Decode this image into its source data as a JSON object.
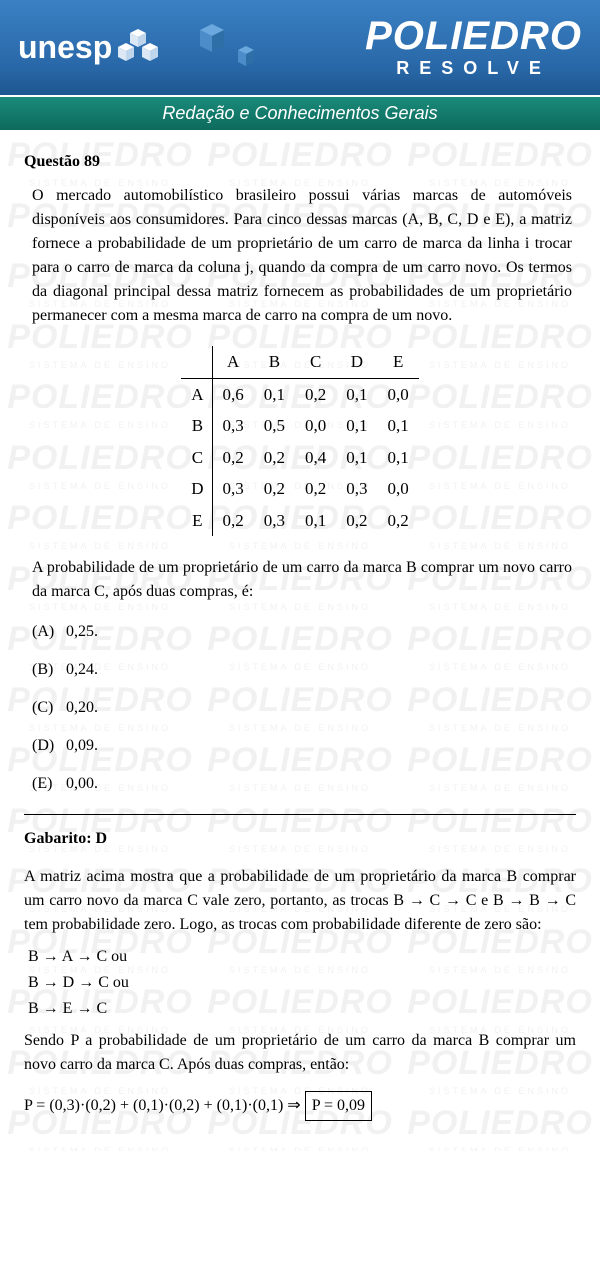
{
  "header": {
    "unesp_text": "unesp",
    "poliedro_main": "POLIEDRO",
    "poliedro_sub": "RESOLVE"
  },
  "subheader": "Redação e Conhecimentos Gerais",
  "question": {
    "title": "Questão 89",
    "body": "O mercado automobilístico brasileiro possui várias marcas de automóveis disponíveis aos consumidores. Para cinco dessas marcas (A, B, C, D e E), a matriz fornece a probabilidade de um proprietário de um carro de marca da linha i trocar para o carro de marca da coluna j, quando da compra de um carro novo. Os termos da diagonal principal dessa matriz fornecem as probabilidades de um proprietário permanecer com a mesma marca de carro na compra de um novo.",
    "matrix": {
      "cols": [
        "A",
        "B",
        "C",
        "D",
        "E"
      ],
      "rows": [
        "A",
        "B",
        "C",
        "D",
        "E"
      ],
      "cells": [
        [
          "0,6",
          "0,1",
          "0,2",
          "0,1",
          "0,0"
        ],
        [
          "0,3",
          "0,5",
          "0,0",
          "0,1",
          "0,1"
        ],
        [
          "0,2",
          "0,2",
          "0,4",
          "0,1",
          "0,1"
        ],
        [
          "0,3",
          "0,2",
          "0,2",
          "0,3",
          "0,0"
        ],
        [
          "0,2",
          "0,3",
          "0,1",
          "0,2",
          "0,2"
        ]
      ]
    },
    "subtext": "A probabilidade de um proprietário de um carro da marca B comprar um novo carro da marca C, após duas compras, é:",
    "options": [
      {
        "label": "(A)",
        "value": "0,25."
      },
      {
        "label": "(B)",
        "value": "0,24."
      },
      {
        "label": "(C)",
        "value": "0,20."
      },
      {
        "label": "(D)",
        "value": "0,09."
      },
      {
        "label": "(E)",
        "value": "0,00."
      }
    ]
  },
  "solution": {
    "gabarito": "Gabarito: D",
    "body1": "A matriz acima mostra que a probabilidade de um proprietário da marca B comprar um carro novo da marca C vale zero, portanto, as trocas  B → C → C  e  B → B → C  tem probabilidade zero. Logo, as trocas com probabilidade diferente de zero são:",
    "paths": [
      "B → A → C     ou",
      "B → D → C     ou",
      "B → E → C"
    ],
    "body2": "Sendo P a probabilidade de um proprietário de um carro da marca B comprar um novo carro da marca C. Após duas compras, então:",
    "equation_left": "P = (0,3)·(0,2) + (0,1)·(0,2) + (0,1)·(0,1) ⇒",
    "equation_boxed": "P = 0,09"
  },
  "watermark": {
    "big": "POLIEDRO",
    "small": "SISTEMA DE ENSINO"
  },
  "colors": {
    "header_top": "#3a81c4",
    "header_bottom": "#1e5690",
    "subheader_top": "#1a8a7a",
    "subheader_bottom": "#0d6b5d",
    "text": "#000000",
    "bg": "#ffffff"
  }
}
